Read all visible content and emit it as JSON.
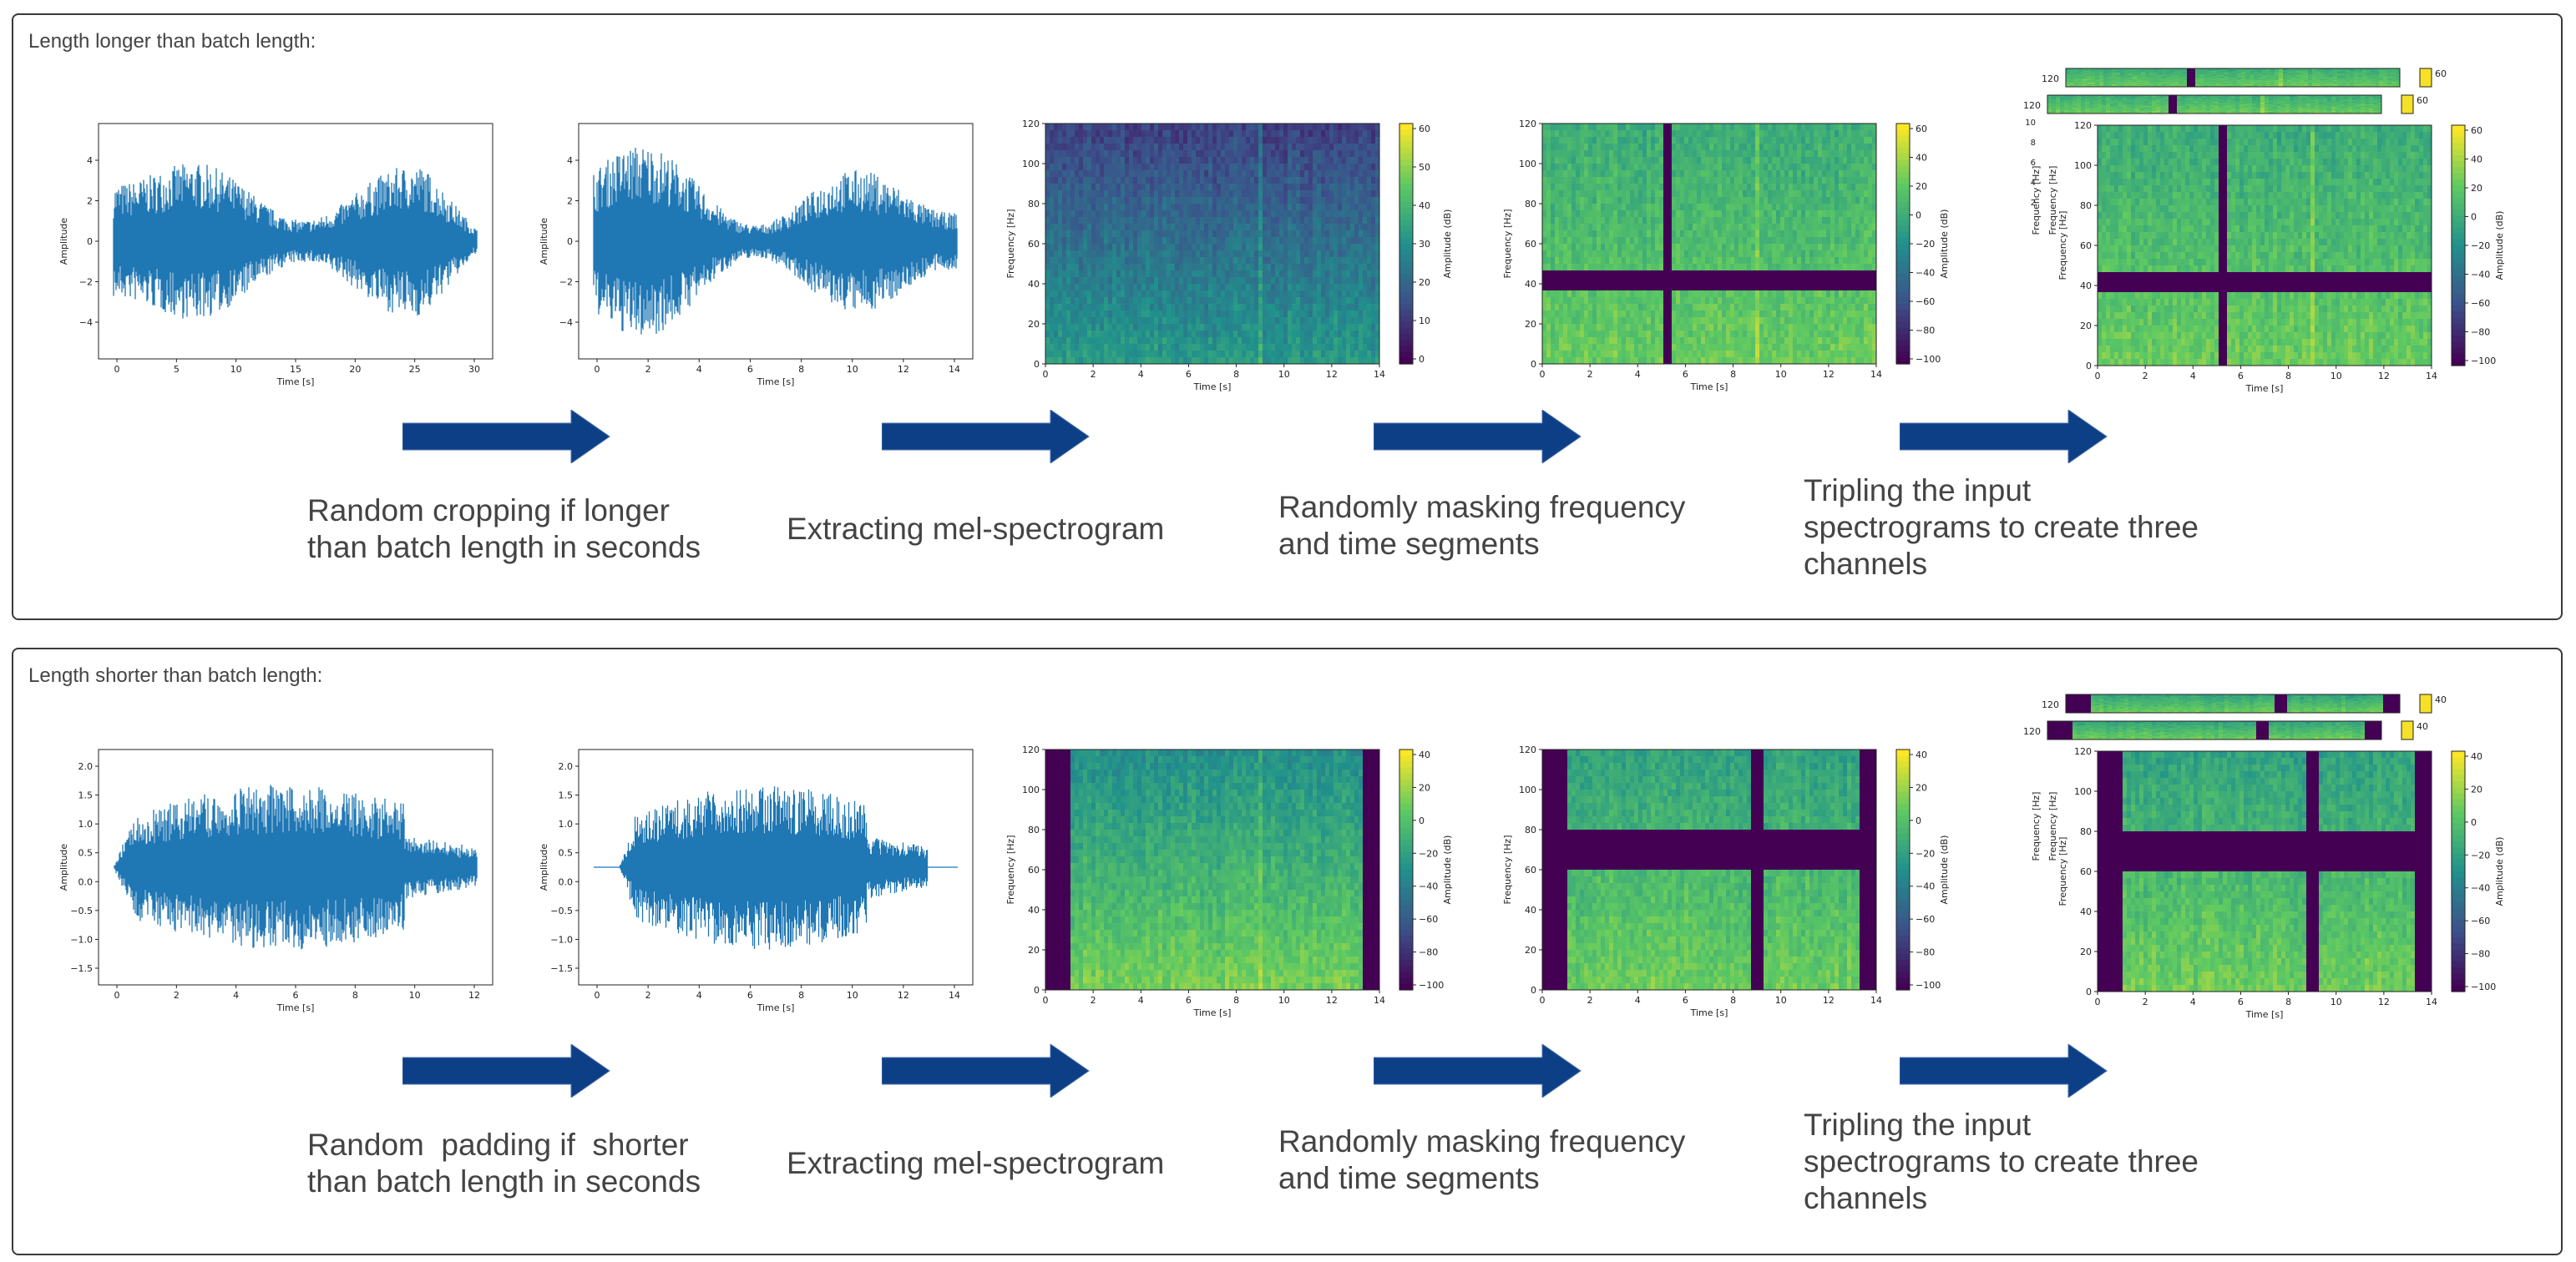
{
  "colors": {
    "wave": "#1f77b4",
    "arrow": "#0d3f86",
    "mask": "#440154"
  },
  "rows": [
    {
      "title": "Length longer than batch length:",
      "steps": [
        "Random cropping if longer\nthan batch length in seconds",
        "Extracting mel-spectrogram",
        "Randomly masking frequency\nand time segments",
        "Tripling the input\nspectrograms to create three\nchannels"
      ],
      "raw": {
        "xlabel": "Time [s]",
        "ylabel": "Amplitude",
        "xticks": [
          "0",
          "5",
          "10",
          "15",
          "20",
          "25",
          "30"
        ],
        "yticks": [
          "4",
          "2",
          "0",
          "−2",
          "−4"
        ]
      },
      "cropped": {
        "xlabel": "Time [s]",
        "ylabel": "Amplitude",
        "xticks": [
          "0",
          "2",
          "4",
          "6",
          "8",
          "10",
          "12",
          "14"
        ],
        "yticks": [
          "4",
          "2",
          "0",
          "−2",
          "−4"
        ]
      },
      "spec": {
        "xlabel": "Time [s]",
        "ylabel": "Frequency [Hz]",
        "cblabel": "Amplitude (dB)",
        "xticks": [
          "0",
          "2",
          "4",
          "6",
          "8",
          "10",
          "12",
          "14"
        ],
        "yticks": [
          "120",
          "100",
          "80",
          "60",
          "40",
          "20",
          "0"
        ],
        "cbticks": [
          "60",
          "50",
          "40",
          "30",
          "20",
          "10",
          "0"
        ]
      },
      "masked": {
        "xlabel": "Time [s]",
        "ylabel": "Frequency [Hz]",
        "cblabel": "Amplitude (dB)",
        "xticks": [
          "0",
          "2",
          "4",
          "6",
          "8",
          "10",
          "12",
          "14"
        ],
        "yticks": [
          "120",
          "100",
          "80",
          "60",
          "40",
          "20",
          "0"
        ],
        "cbticks": [
          "60",
          "40",
          "20",
          "0",
          "−20",
          "−40",
          "−60",
          "−80",
          "−100"
        ]
      },
      "tripled": {
        "xlabel": "Time [s]",
        "ylabel": "Frequency [Hz]",
        "cblabel": "Amplitude (dB)",
        "xticks": [
          "0",
          "2",
          "4",
          "6",
          "8",
          "10",
          "12",
          "14"
        ],
        "yticks": [
          "120",
          "100",
          "80",
          "60",
          "40",
          "20",
          "0"
        ],
        "cbticks": [
          "60",
          "40",
          "20",
          "0",
          "−20",
          "−40",
          "−60",
          "−80",
          "−100"
        ],
        "top_cb": "60",
        "stack_ticks": [
          "120",
          "120",
          "10",
          "8",
          "6",
          "4",
          "2"
        ]
      }
    },
    {
      "title": "Length shorter than batch length:",
      "steps": [
        "Random  padding if  shorter\nthan batch length in seconds",
        "Extracting mel-spectrogram",
        "Randomly masking frequency\nand time segments",
        "Tripling the input\nspectrograms to create three\nchannels"
      ],
      "raw": {
        "xlabel": "Time [s]",
        "ylabel": "Amplitude",
        "xticks": [
          "0",
          "2",
          "4",
          "6",
          "8",
          "10",
          "12"
        ],
        "yticks": [
          "2.0",
          "1.5",
          "1.0",
          "0.5",
          "0.0",
          "−0.5",
          "−1.0",
          "−1.5"
        ]
      },
      "cropped": {
        "xlabel": "Time [s]",
        "ylabel": "Amplitude",
        "xticks": [
          "0",
          "2",
          "4",
          "6",
          "8",
          "10",
          "12",
          "14"
        ],
        "yticks": [
          "2.0",
          "1.5",
          "1.0",
          "0.5",
          "0.0",
          "−0.5",
          "−1.0",
          "−1.5"
        ]
      },
      "spec": {
        "xlabel": "Time [s]",
        "ylabel": "Frequency [Hz]",
        "cblabel": "Amplitude (dB)",
        "xticks": [
          "0",
          "2",
          "4",
          "6",
          "8",
          "10",
          "12",
          "14"
        ],
        "yticks": [
          "120",
          "100",
          "80",
          "60",
          "40",
          "20",
          "0"
        ],
        "cbticks": [
          "40",
          "20",
          "0",
          "−20",
          "−40",
          "−60",
          "−80",
          "−100"
        ]
      },
      "masked": {
        "xlabel": "Time [s]",
        "ylabel": "Frequency [Hz]",
        "cblabel": "Amplitude (dB)",
        "xticks": [
          "0",
          "2",
          "4",
          "6",
          "8",
          "10",
          "12",
          "14"
        ],
        "yticks": [
          "120",
          "100",
          "80",
          "60",
          "40",
          "20",
          "0"
        ],
        "cbticks": [
          "40",
          "20",
          "0",
          "−20",
          "−40",
          "−60",
          "−80",
          "−100"
        ]
      },
      "tripled": {
        "xlabel": "Time [s]",
        "ylabel": "Frequency [Hz]",
        "cblabel": "Amplitude (dB)",
        "xticks": [
          "0",
          "2",
          "4",
          "6",
          "8",
          "10",
          "12",
          "14"
        ],
        "yticks": [
          "120",
          "100",
          "80",
          "60",
          "40",
          "20",
          "0"
        ],
        "cbticks": [
          "40",
          "20",
          "0",
          "−20",
          "−40",
          "−60",
          "−80",
          "−100"
        ],
        "top_cb": "40",
        "stack_ticks": [
          "120",
          "120"
        ]
      }
    }
  ]
}
